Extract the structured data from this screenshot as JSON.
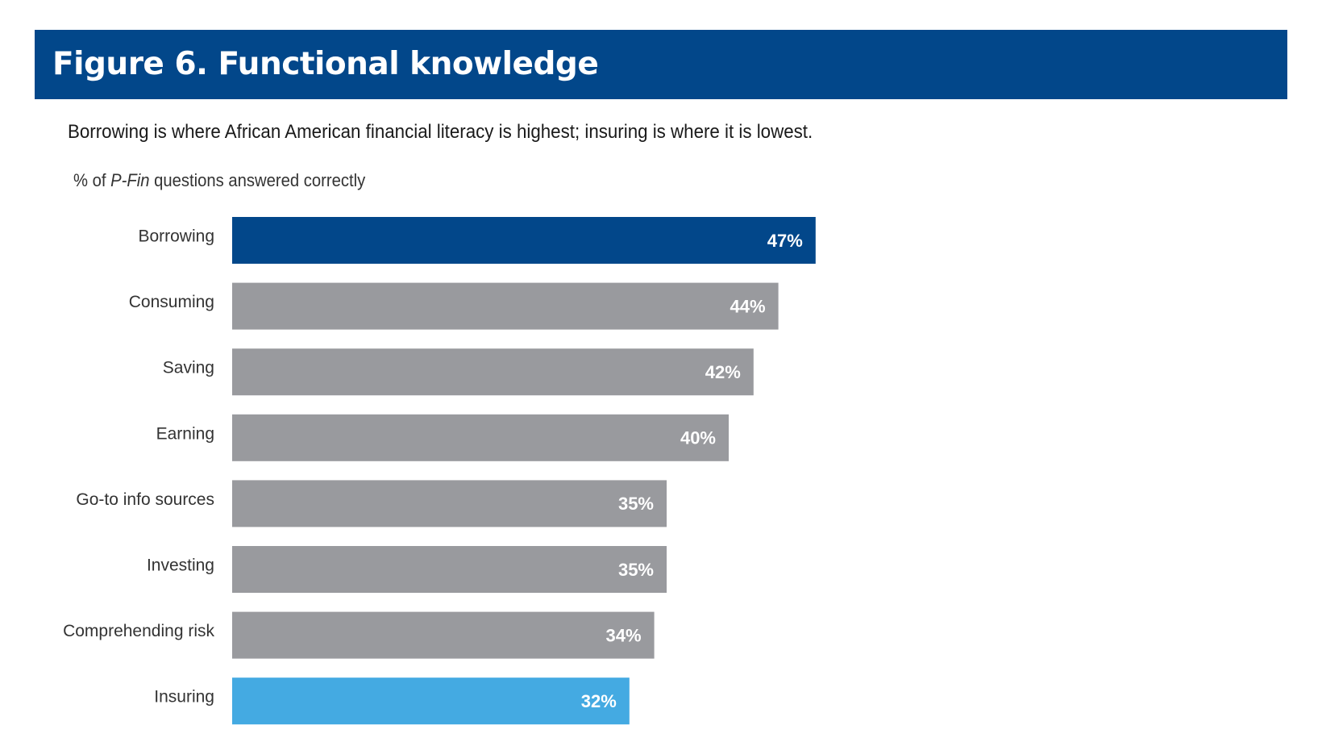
{
  "figure": {
    "title": "Figure 6. Functional knowledge",
    "subtitle": "Borrowing is where African American financial literacy is highest; insuring is where it is lowest.",
    "unit_prefix": "% of ",
    "unit_emphasis": "P-Fin",
    "unit_suffix": " questions answered correctly"
  },
  "colors": {
    "banner": "#02478a",
    "highlight_high": "#02478a",
    "highlight_low": "#44aae2",
    "default_bar": "#999a9e"
  },
  "chart_data": {
    "type": "bar",
    "orientation": "horizontal",
    "title": "Figure 6. Functional knowledge",
    "subtitle": "Borrowing is where African American financial literacy is highest; insuring is where it is lowest.",
    "xlabel": "",
    "ylabel": "% of P-Fin questions answered correctly",
    "xlim": [
      0,
      100
    ],
    "grid": false,
    "legend": "none",
    "categories": [
      "Borrowing",
      "Consuming",
      "Saving",
      "Earning",
      "Go-to info sources",
      "Investing",
      "Comprehending risk",
      "Insuring"
    ],
    "values": [
      47,
      44,
      42,
      40,
      35,
      35,
      34,
      32
    ],
    "value_labels": [
      "47%",
      "44%",
      "42%",
      "40%",
      "35%",
      "35%",
      "34%",
      "32%"
    ],
    "bar_colors": [
      "#02478a",
      "#999a9e",
      "#999a9e",
      "#999a9e",
      "#999a9e",
      "#999a9e",
      "#999a9e",
      "#44aae2"
    ]
  }
}
